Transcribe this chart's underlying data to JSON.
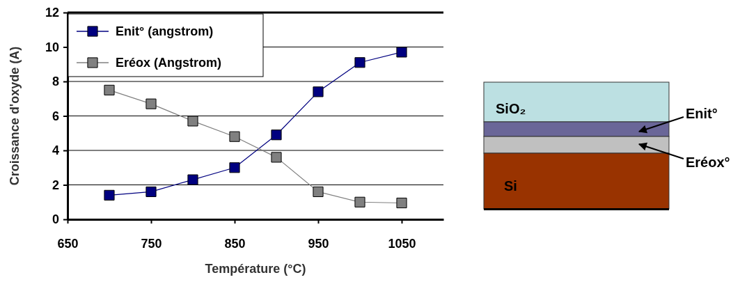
{
  "chart_data": {
    "type": "line",
    "xlabel": "Température (°C)",
    "ylabel": "Croissance d'oxyde (A)",
    "x": [
      700,
      750,
      800,
      850,
      900,
      950,
      1000,
      1050
    ],
    "series": [
      {
        "name": "Enit° (angstrom)",
        "color": "#000080",
        "values": [
          1.4,
          1.6,
          2.3,
          3.0,
          4.9,
          7.4,
          9.1,
          9.7
        ]
      },
      {
        "name": "Eréox (Angstrom)",
        "color": "#808080",
        "values": [
          7.5,
          6.7,
          5.7,
          4.8,
          3.6,
          1.6,
          1.0,
          0.95
        ]
      }
    ],
    "xlim": [
      650,
      1100
    ],
    "xticks": [
      650,
      750,
      850,
      950,
      1050
    ],
    "ylim": [
      0,
      12
    ],
    "yticks": [
      0,
      2,
      4,
      6,
      8,
      10,
      12
    ],
    "grid": "y",
    "legend": "top left",
    "marker": "square",
    "line_style": "solid",
    "annotations": [
      "SiO₂",
      "Enit°",
      "Eréox°",
      "Si"
    ]
  }
}
